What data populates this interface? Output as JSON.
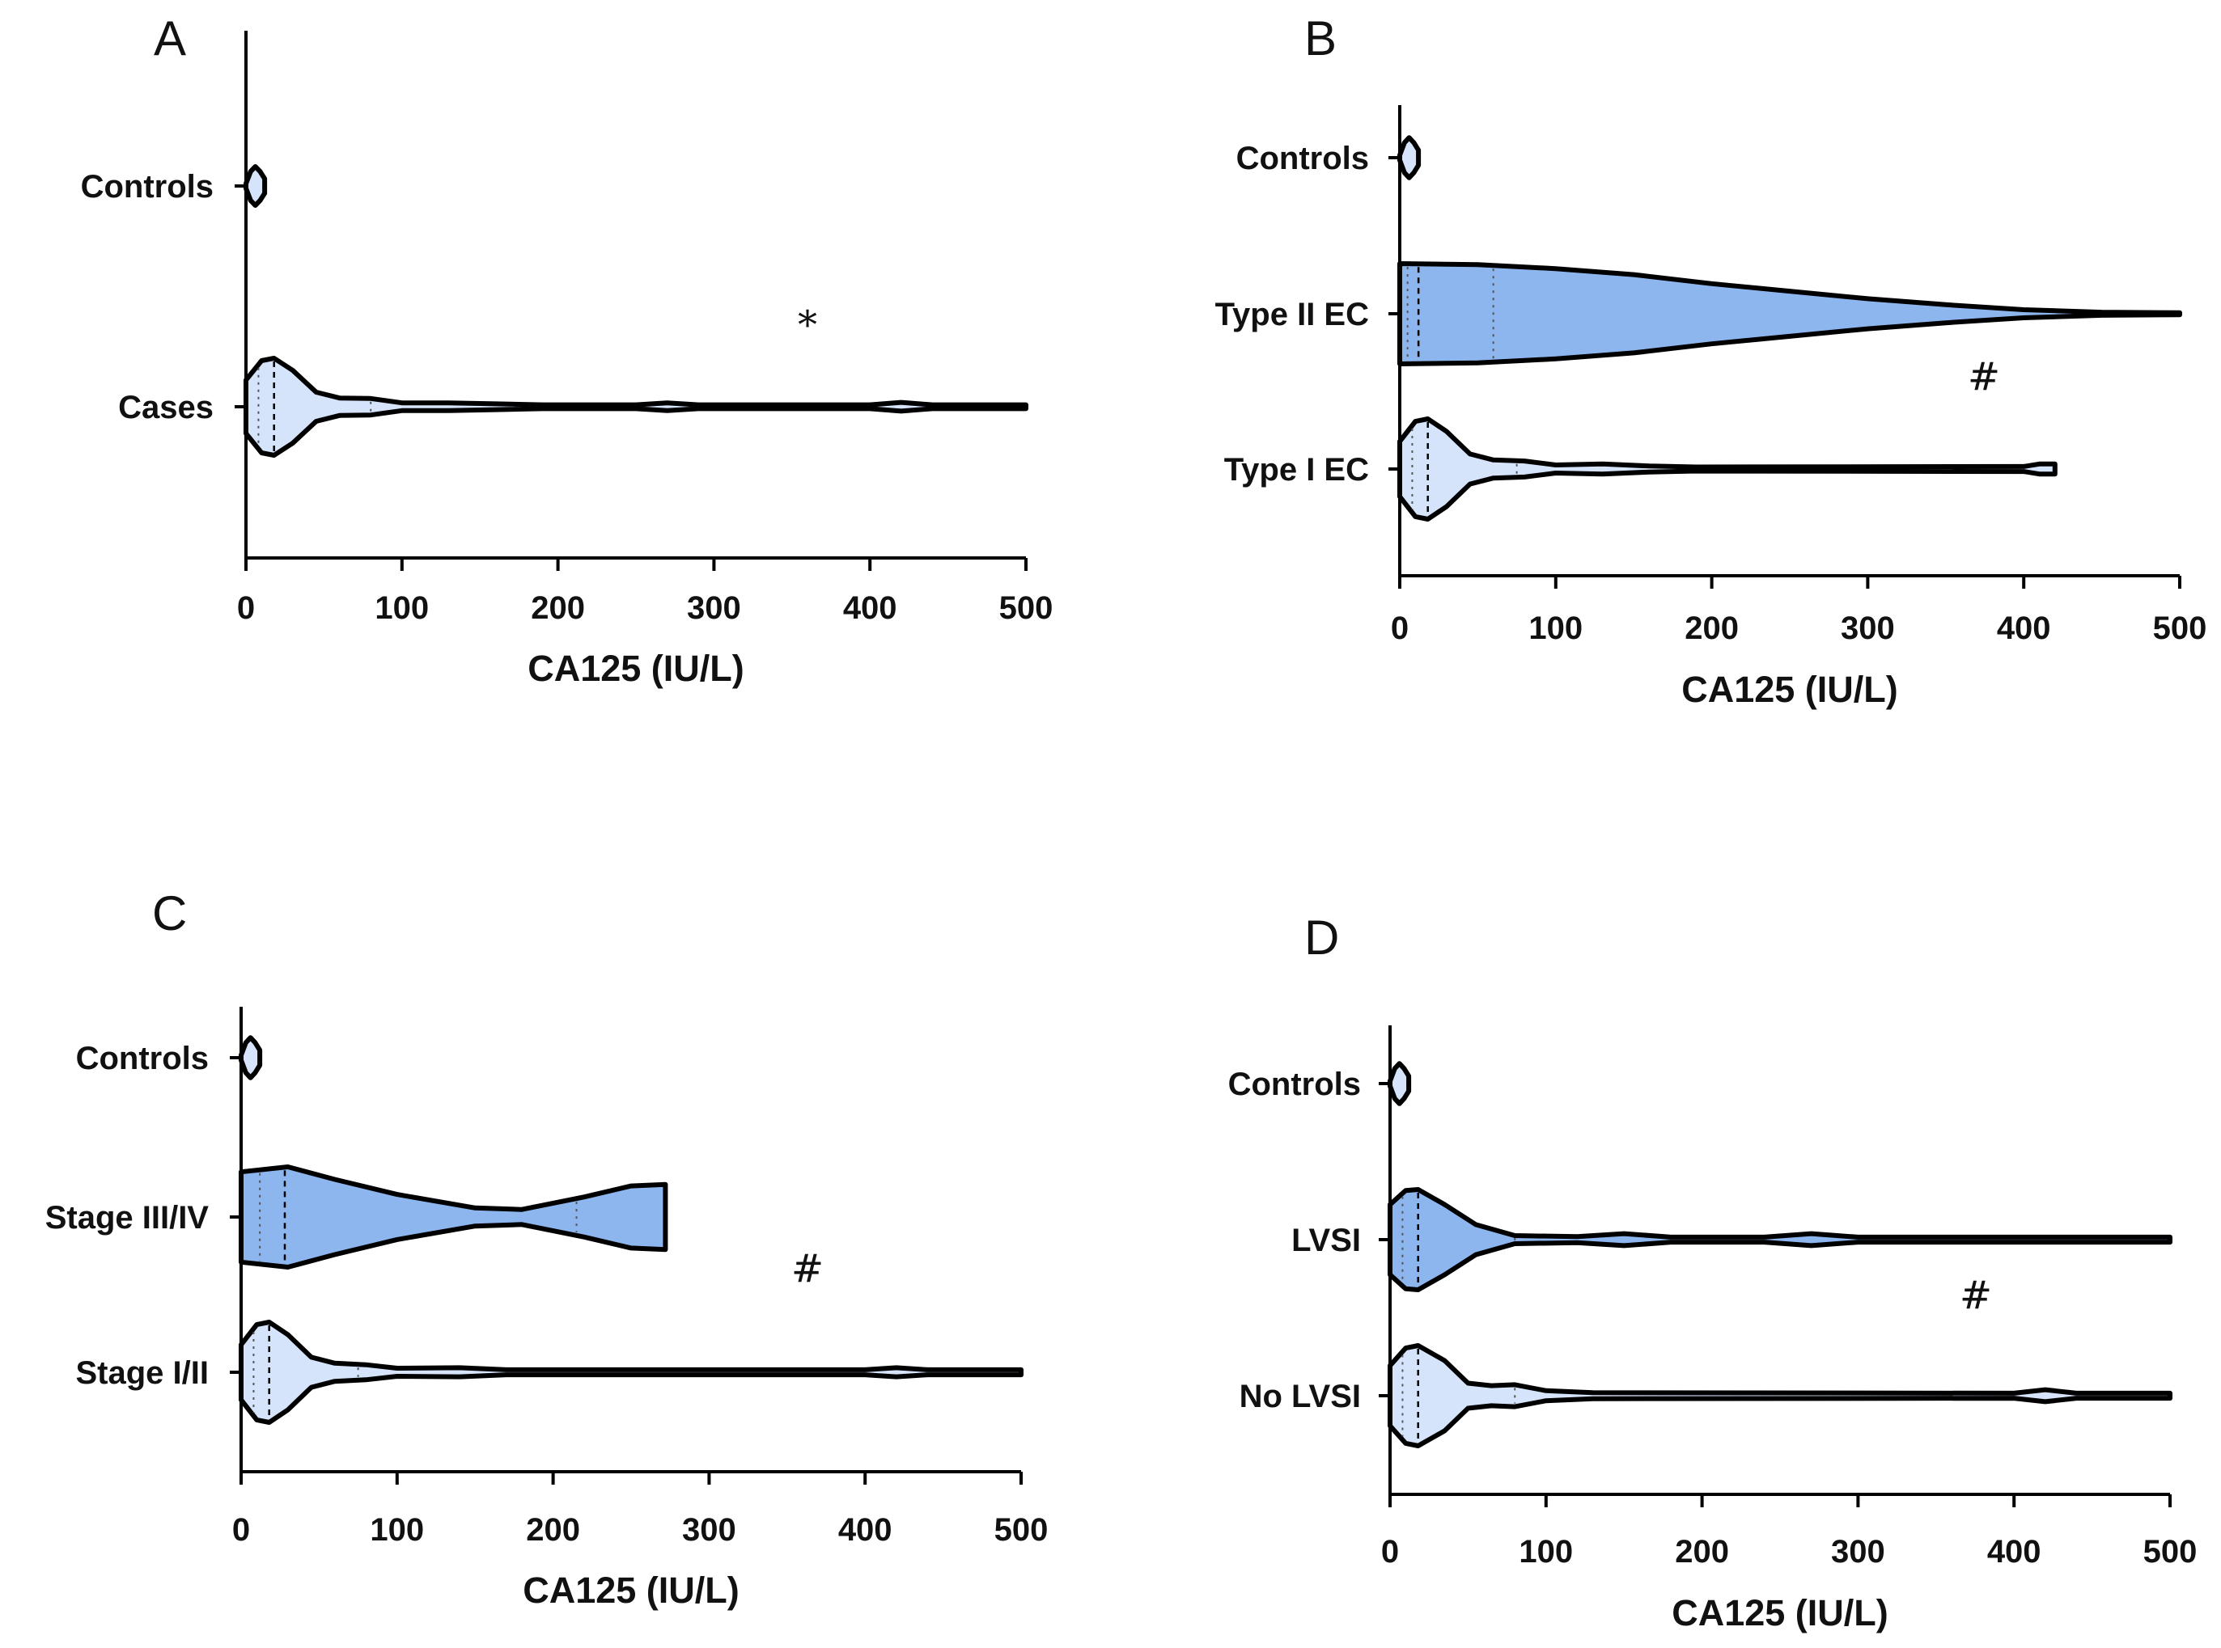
{
  "colors": {
    "light": "#d6e4fb",
    "medium": "#8db6ef",
    "controls": "#d6e4fb",
    "stroke": "#000000"
  },
  "chart_data": [
    {
      "panel": "A",
      "type": "violin",
      "orientation": "horizontal",
      "xlabel": "CA125 (IU/L)",
      "xlim": [
        0,
        500
      ],
      "xticks": [
        "0",
        "100",
        "200",
        "300",
        "400",
        "500"
      ],
      "annotation": "*",
      "groups": [
        {
          "name": "Controls",
          "color": "light",
          "min": 0,
          "max": 12,
          "median": 5,
          "q1": 3,
          "q3": 8,
          "profile": [
            [
              0,
              0.05
            ],
            [
              3,
              0.3
            ],
            [
              6,
              0.4
            ],
            [
              9,
              0.3
            ],
            [
              12,
              0.15
            ]
          ]
        },
        {
          "name": "Cases",
          "color": "light",
          "min": 0,
          "max": 500,
          "median": 18,
          "q1": 8,
          "q3": 80,
          "profile": [
            [
              0,
              0.55
            ],
            [
              10,
              0.95
            ],
            [
              18,
              1
            ],
            [
              30,
              0.75
            ],
            [
              45,
              0.3
            ],
            [
              60,
              0.18
            ],
            [
              80,
              0.17
            ],
            [
              100,
              0.08
            ],
            [
              130,
              0.08
            ],
            [
              160,
              0.06
            ],
            [
              190,
              0.04
            ],
            [
              250,
              0.04
            ],
            [
              270,
              0.08
            ],
            [
              290,
              0.04
            ],
            [
              400,
              0.04
            ],
            [
              420,
              0.09
            ],
            [
              440,
              0.04
            ],
            [
              500,
              0.04
            ]
          ]
        }
      ]
    },
    {
      "panel": "B",
      "type": "violin",
      "orientation": "horizontal",
      "xlabel": "CA125 (IU/L)",
      "xlim": [
        0,
        500
      ],
      "xticks": [
        "0",
        "100",
        "200",
        "300",
        "400",
        "500"
      ],
      "annotation": "#",
      "groups": [
        {
          "name": "Controls",
          "color": "light",
          "min": 0,
          "max": 12,
          "median": 5,
          "q1": 3,
          "q3": 8,
          "profile": [
            [
              0,
              0.05
            ],
            [
              3,
              0.3
            ],
            [
              6,
              0.4
            ],
            [
              9,
              0.3
            ],
            [
              12,
              0.15
            ]
          ]
        },
        {
          "name": "Type II EC",
          "color": "medium",
          "min": 0,
          "max": 500,
          "median": 12,
          "q1": 5,
          "q3": 60,
          "profile": [
            [
              0,
              1
            ],
            [
              50,
              0.98
            ],
            [
              100,
              0.9
            ],
            [
              150,
              0.78
            ],
            [
              200,
              0.6
            ],
            [
              250,
              0.45
            ],
            [
              300,
              0.3
            ],
            [
              350,
              0.18
            ],
            [
              400,
              0.08
            ],
            [
              450,
              0.03
            ],
            [
              500,
              0.02
            ]
          ]
        },
        {
          "name": "Type I EC",
          "color": "light",
          "min": 0,
          "max": 420,
          "median": 18,
          "q1": 8,
          "q3": 75,
          "profile": [
            [
              0,
              0.55
            ],
            [
              10,
              0.95
            ],
            [
              18,
              1
            ],
            [
              30,
              0.75
            ],
            [
              45,
              0.3
            ],
            [
              60,
              0.18
            ],
            [
              80,
              0.16
            ],
            [
              100,
              0.08
            ],
            [
              130,
              0.1
            ],
            [
              160,
              0.06
            ],
            [
              190,
              0.04
            ],
            [
              400,
              0.05
            ],
            [
              410,
              0.1
            ],
            [
              420,
              0.1
            ]
          ]
        }
      ]
    },
    {
      "panel": "C",
      "type": "violin",
      "orientation": "horizontal",
      "xlabel": "CA125 (IU/L)",
      "xlim": [
        0,
        500
      ],
      "xticks": [
        "0",
        "100",
        "200",
        "300",
        "400",
        "500"
      ],
      "annotation": "#",
      "groups": [
        {
          "name": "Controls",
          "color": "light",
          "min": 0,
          "max": 12,
          "median": 5,
          "q1": 3,
          "q3": 8,
          "profile": [
            [
              0,
              0.05
            ],
            [
              3,
              0.3
            ],
            [
              6,
              0.4
            ],
            [
              9,
              0.3
            ],
            [
              12,
              0.15
            ]
          ]
        },
        {
          "name": "Stage III/IV",
          "color": "medium",
          "min": 0,
          "max": 272,
          "median": 28,
          "q1": 12,
          "q3": 215,
          "profile": [
            [
              0,
              0.9
            ],
            [
              30,
              1
            ],
            [
              60,
              0.75
            ],
            [
              100,
              0.45
            ],
            [
              150,
              0.18
            ],
            [
              180,
              0.15
            ],
            [
              220,
              0.4
            ],
            [
              250,
              0.62
            ],
            [
              272,
              0.65
            ]
          ]
        },
        {
          "name": "Stage I/II",
          "color": "light",
          "min": 0,
          "max": 500,
          "median": 18,
          "q1": 8,
          "q3": 75,
          "profile": [
            [
              0,
              0.55
            ],
            [
              10,
              0.95
            ],
            [
              18,
              1
            ],
            [
              30,
              0.75
            ],
            [
              45,
              0.3
            ],
            [
              60,
              0.18
            ],
            [
              80,
              0.15
            ],
            [
              100,
              0.08
            ],
            [
              140,
              0.09
            ],
            [
              170,
              0.05
            ],
            [
              400,
              0.05
            ],
            [
              420,
              0.09
            ],
            [
              440,
              0.05
            ],
            [
              500,
              0.05
            ]
          ]
        }
      ]
    },
    {
      "panel": "D",
      "type": "violin",
      "orientation": "horizontal",
      "xlabel": "CA125 (IU/L)",
      "xlim": [
        0,
        500
      ],
      "xticks": [
        "0",
        "100",
        "200",
        "300",
        "400",
        "500"
      ],
      "annotation": "#",
      "groups": [
        {
          "name": "Controls",
          "color": "light",
          "min": 0,
          "max": 12,
          "median": 5,
          "q1": 3,
          "q3": 8,
          "profile": [
            [
              0,
              0.05
            ],
            [
              3,
              0.3
            ],
            [
              6,
              0.4
            ],
            [
              9,
              0.3
            ],
            [
              12,
              0.15
            ]
          ]
        },
        {
          "name": "LVSI",
          "color": "medium",
          "min": 0,
          "max": 500,
          "median": 18,
          "q1": 8,
          "q3": 80,
          "profile": [
            [
              0,
              0.7
            ],
            [
              10,
              0.98
            ],
            [
              18,
              1
            ],
            [
              35,
              0.7
            ],
            [
              55,
              0.3
            ],
            [
              80,
              0.08
            ],
            [
              120,
              0.06
            ],
            [
              150,
              0.12
            ],
            [
              180,
              0.05
            ],
            [
              240,
              0.05
            ],
            [
              270,
              0.12
            ],
            [
              300,
              0.05
            ],
            [
              500,
              0.05
            ]
          ]
        },
        {
          "name": "No LVSI",
          "color": "light",
          "min": 0,
          "max": 500,
          "median": 18,
          "q1": 8,
          "q3": 80,
          "profile": [
            [
              0,
              0.6
            ],
            [
              10,
              0.95
            ],
            [
              18,
              1
            ],
            [
              35,
              0.7
            ],
            [
              50,
              0.25
            ],
            [
              65,
              0.2
            ],
            [
              80,
              0.22
            ],
            [
              100,
              0.1
            ],
            [
              130,
              0.06
            ],
            [
              400,
              0.05
            ],
            [
              420,
              0.12
            ],
            [
              440,
              0.05
            ],
            [
              500,
              0.05
            ]
          ]
        }
      ]
    }
  ]
}
